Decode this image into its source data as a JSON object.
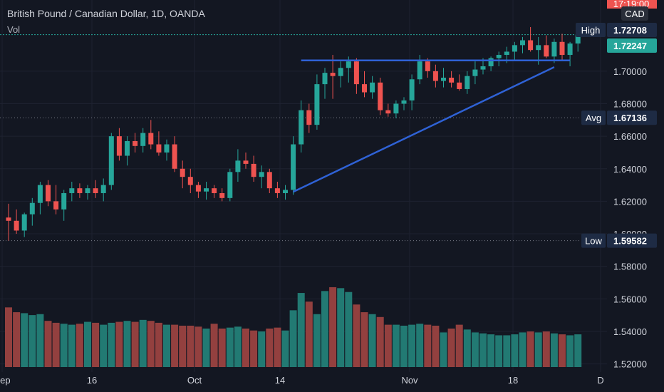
{
  "header": {
    "title": "British Pound / Canadian Dollar, 1D, OANDA",
    "volume_label": "Vol"
  },
  "chart_data": {
    "type": "candlestick",
    "instrument": "British Pound / Canadian Dollar",
    "interval": "1D",
    "source": "OANDA",
    "currency": "CAD",
    "clock_text": "17:19:00",
    "ylim": [
      1.515,
      1.7385
    ],
    "price_ticks": [
      "1.52000",
      "1.54000",
      "1.56000",
      "1.58000",
      "1.60000",
      "1.62000",
      "1.64000",
      "1.66000",
      "1.68000",
      "1.70000"
    ],
    "x_ticks": [
      "Sep",
      "16",
      "Oct",
      "14",
      "Nov",
      "18",
      "D"
    ],
    "markers": {
      "high": {
        "label": "High",
        "value": "1.72708"
      },
      "last": {
        "value": "1.72247"
      },
      "avg": {
        "label": "Avg",
        "value": "1.67136"
      },
      "low": {
        "label": "Low",
        "value": "1.59582"
      }
    },
    "candles": [
      [
        1.61,
        1.6185,
        1.5958,
        1.608
      ],
      [
        1.608,
        1.615,
        1.6,
        1.602
      ],
      [
        1.602,
        1.613,
        1.598,
        1.612
      ],
      [
        1.612,
        1.622,
        1.605,
        1.619
      ],
      [
        1.619,
        1.632,
        1.612,
        1.63
      ],
      [
        1.63,
        1.633,
        1.617,
        1.62
      ],
      [
        1.62,
        1.63,
        1.612,
        1.615
      ],
      [
        1.615,
        1.627,
        1.608,
        1.625
      ],
      [
        1.625,
        1.632,
        1.62,
        1.628
      ],
      [
        1.628,
        1.631,
        1.622,
        1.625
      ],
      [
        1.625,
        1.63,
        1.621,
        1.628
      ],
      [
        1.628,
        1.633,
        1.622,
        1.625
      ],
      [
        1.625,
        1.634,
        1.62,
        1.63
      ],
      [
        1.63,
        1.662,
        1.627,
        1.66
      ],
      [
        1.66,
        1.665,
        1.645,
        1.648
      ],
      [
        1.648,
        1.66,
        1.642,
        1.657
      ],
      [
        1.657,
        1.662,
        1.65,
        1.654
      ],
      [
        1.654,
        1.665,
        1.65,
        1.662
      ],
      [
        1.662,
        1.67,
        1.652,
        1.655
      ],
      [
        1.655,
        1.663,
        1.648,
        1.65
      ],
      [
        1.65,
        1.658,
        1.645,
        1.655
      ],
      [
        1.655,
        1.66,
        1.638,
        1.64
      ],
      [
        1.64,
        1.645,
        1.628,
        1.635
      ],
      [
        1.635,
        1.64,
        1.625,
        1.63
      ],
      [
        1.63,
        1.632,
        1.622,
        1.626
      ],
      [
        1.626,
        1.632,
        1.621,
        1.628
      ],
      [
        1.628,
        1.63,
        1.622,
        1.625
      ],
      [
        1.625,
        1.628,
        1.62,
        1.622
      ],
      [
        1.622,
        1.64,
        1.62,
        1.638
      ],
      [
        1.638,
        1.652,
        1.632,
        1.645
      ],
      [
        1.645,
        1.65,
        1.64,
        1.643
      ],
      [
        1.643,
        1.648,
        1.632,
        1.635
      ],
      [
        1.635,
        1.642,
        1.628,
        1.638
      ],
      [
        1.638,
        1.64,
        1.625,
        1.628
      ],
      [
        1.628,
        1.632,
        1.622,
        1.625
      ],
      [
        1.625,
        1.63,
        1.621,
        1.627
      ],
      [
        1.627,
        1.66,
        1.624,
        1.655
      ],
      [
        1.655,
        1.682,
        1.65,
        1.676
      ],
      [
        1.676,
        1.68,
        1.662,
        1.667
      ],
      [
        1.667,
        1.698,
        1.664,
        1.692
      ],
      [
        1.692,
        1.702,
        1.683,
        1.699
      ],
      [
        1.699,
        1.71,
        1.683,
        1.697
      ],
      [
        1.697,
        1.706,
        1.69,
        1.702
      ],
      [
        1.702,
        1.709,
        1.693,
        1.706
      ],
      [
        1.706,
        1.708,
        1.686,
        1.692
      ],
      [
        1.692,
        1.7,
        1.684,
        1.687
      ],
      [
        1.687,
        1.697,
        1.683,
        1.693
      ],
      [
        1.693,
        1.696,
        1.673,
        1.676
      ],
      [
        1.676,
        1.68,
        1.672,
        1.674
      ],
      [
        1.674,
        1.682,
        1.671,
        1.68
      ],
      [
        1.68,
        1.684,
        1.676,
        1.682
      ],
      [
        1.682,
        1.698,
        1.676,
        1.695
      ],
      [
        1.695,
        1.71,
        1.692,
        1.706
      ],
      [
        1.706,
        1.708,
        1.696,
        1.7
      ],
      [
        1.7,
        1.704,
        1.69,
        1.694
      ],
      [
        1.694,
        1.702,
        1.69,
        1.696
      ],
      [
        1.696,
        1.7,
        1.69,
        1.693
      ],
      [
        1.693,
        1.698,
        1.688,
        1.689
      ],
      [
        1.689,
        1.7,
        1.686,
        1.697
      ],
      [
        1.697,
        1.706,
        1.692,
        1.701
      ],
      [
        1.701,
        1.708,
        1.698,
        1.703
      ],
      [
        1.703,
        1.709,
        1.7,
        1.708
      ],
      [
        1.708,
        1.712,
        1.703,
        1.71
      ],
      [
        1.71,
        1.715,
        1.705,
        1.712
      ],
      [
        1.712,
        1.718,
        1.707,
        1.716
      ],
      [
        1.716,
        1.721,
        1.711,
        1.719
      ],
      [
        1.719,
        1.7271,
        1.712,
        1.713
      ],
      [
        1.713,
        1.721,
        1.704,
        1.716
      ],
      [
        1.716,
        1.722,
        1.708,
        1.709
      ],
      [
        1.709,
        1.72,
        1.705,
        1.718
      ],
      [
        1.718,
        1.723,
        1.707,
        1.71
      ],
      [
        1.71,
        1.718,
        1.703,
        1.717
      ],
      [
        1.717,
        1.7235,
        1.712,
        1.7225
      ]
    ],
    "volume": {
      "range": [
        0,
        1.0
      ],
      "values": [
        0.62,
        0.57,
        0.56,
        0.54,
        0.55,
        0.48,
        0.46,
        0.45,
        0.44,
        0.45,
        0.47,
        0.46,
        0.44,
        0.46,
        0.47,
        0.48,
        0.47,
        0.49,
        0.48,
        0.46,
        0.44,
        0.44,
        0.43,
        0.43,
        0.42,
        0.4,
        0.45,
        0.4,
        0.41,
        0.42,
        0.4,
        0.38,
        0.37,
        0.4,
        0.41,
        0.38,
        0.59,
        0.77,
        0.68,
        0.55,
        0.79,
        0.83,
        0.82,
        0.78,
        0.65,
        0.57,
        0.55,
        0.52,
        0.44,
        0.44,
        0.43,
        0.44,
        0.45,
        0.44,
        0.43,
        0.36,
        0.4,
        0.44,
        0.39,
        0.36,
        0.35,
        0.34,
        0.33,
        0.33,
        0.34,
        0.36,
        0.37,
        0.36,
        0.37,
        0.35,
        0.34,
        0.33,
        0.34
      ]
    },
    "trendlines": [
      {
        "name": "resistance",
        "from": [
          37,
          1.7066
        ],
        "to": [
          71,
          1.7066
        ]
      },
      {
        "name": "support",
        "from": [
          36,
          1.6258
        ],
        "to": [
          69,
          1.7025
        ]
      }
    ],
    "colors": {
      "background": "#131722",
      "up": "#26a69a",
      "down": "#ef5350",
      "up_volume": "#227a73",
      "down_volume": "#93403f",
      "grid": "#1e2230",
      "trendline": "#2f62d6",
      "tag_bg": "#1e2b44",
      "last_tag": "#26a69a",
      "clock_tag": "#ef5350"
    }
  }
}
